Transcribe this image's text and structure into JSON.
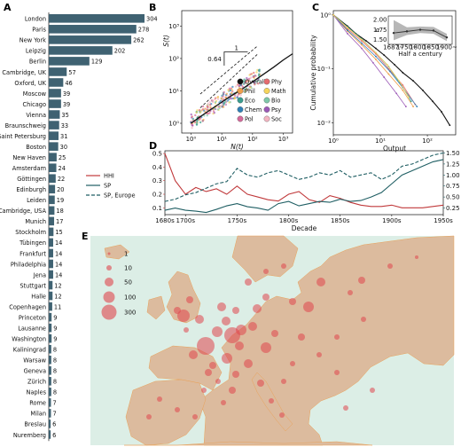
{
  "panels": {
    "a": "A",
    "b": "B",
    "c": "C",
    "d": "D",
    "e": "E"
  },
  "colors": {
    "bar": "#3f6272",
    "hhi": "#c0393b",
    "sp": "#1f5e63",
    "map_land": "#dcbb9e",
    "map_sea": "#dceee6",
    "bubble": "#e0464c"
  },
  "chart_data": [
    {
      "type": "bar",
      "orientation": "horizontal",
      "categories": [
        "London",
        "Paris",
        "New York",
        "Leipzig",
        "Berlin",
        "Cambridge, UK",
        "Oxford, UK",
        "Moscow",
        "Chicago",
        "Vienna",
        "Braunschweig",
        "Saint Petersburg",
        "Boston",
        "New Haven",
        "Amsterdam",
        "Göttingen",
        "Edinburgh",
        "Leiden",
        "Cambridge, USA",
        "Munich",
        "Stockholm",
        "Tübingen",
        "Frankfurt",
        "Philadelphia",
        "Jena",
        "Stuttgart",
        "Halle",
        "Copenhagen",
        "Princeton",
        "Lausanne",
        "Washington",
        "Kaliningrad",
        "Warsaw",
        "Geneva",
        "Zürich",
        "Naples",
        "Rome",
        "Milan",
        "Breslau",
        "Nuremberg"
      ],
      "values": [
        304,
        278,
        262,
        202,
        129,
        57,
        46,
        39,
        39,
        35,
        33,
        31,
        30,
        25,
        24,
        22,
        20,
        19,
        18,
        17,
        15,
        14,
        14,
        14,
        14,
        12,
        12,
        11,
        9,
        9,
        9,
        8,
        8,
        8,
        8,
        8,
        7,
        7,
        6,
        6
      ],
      "xlim": [
        0,
        304
      ]
    },
    {
      "type": "scatter",
      "xlabel": "N(t)",
      "ylabel": "S(t)",
      "xscale": "log",
      "yscale": "log",
      "xlim": [
        0.5,
        2000
      ],
      "ylim": [
        0.5,
        3000
      ],
      "xticks": [
        "10⁰",
        "10¹",
        "10²",
        "10³"
      ],
      "yticks": [
        "10⁰",
        "10¹",
        "10²",
        "10³"
      ],
      "slope_labels": {
        "run": "1",
        "rise": "0.64"
      },
      "legend": [
        {
          "name": "Overall",
          "color": "#111111"
        },
        {
          "name": "Phy",
          "color": "#e56b6f"
        },
        {
          "name": "Phil",
          "color": "#f0a04b"
        },
        {
          "name": "Math",
          "color": "#f6d55c"
        },
        {
          "name": "Eco",
          "color": "#3a9d8f"
        },
        {
          "name": "Bio",
          "color": "#7fc8a9"
        },
        {
          "name": "Chem",
          "color": "#2f7fb5"
        },
        {
          "name": "Psy",
          "color": "#9b59b6"
        },
        {
          "name": "Pol",
          "color": "#d46a9b"
        },
        {
          "name": "Soc",
          "color": "#f4b6c2"
        }
      ],
      "overall": {
        "x": [
          1,
          2,
          5,
          10,
          20,
          50,
          100,
          200,
          500,
          1000,
          2000
        ],
        "y": [
          1,
          1.6,
          2.9,
          4.5,
          7,
          12,
          19,
          30,
          55,
          90,
          140
        ]
      }
    },
    {
      "type": "line",
      "xlabel": "Output",
      "ylabel": "Cumulative probability",
      "xscale": "log",
      "yscale": "log",
      "xlim": [
        1,
        400
      ],
      "ylim": [
        0.006,
        1.2
      ],
      "xticks": [
        "10⁰",
        "10¹",
        "10²"
      ],
      "yticks": [
        "10⁻²",
        "10⁻¹",
        "10⁰"
      ],
      "series": [
        {
          "color": "#111111",
          "x": [
            1,
            2,
            3,
            5,
            8,
            12,
            20,
            30,
            50,
            80,
            130,
            200,
            300
          ],
          "y": [
            1,
            0.62,
            0.45,
            0.33,
            0.24,
            0.18,
            0.12,
            0.085,
            0.06,
            0.04,
            0.025,
            0.016,
            0.009
          ]
        },
        {
          "color": "#e56b6f",
          "x": [
            1,
            2,
            4,
            8,
            15,
            30,
            55
          ],
          "y": [
            1,
            0.55,
            0.33,
            0.19,
            0.1,
            0.05,
            0.022
          ]
        },
        {
          "color": "#f0a04b",
          "x": [
            1,
            2,
            4,
            8,
            15,
            30,
            50
          ],
          "y": [
            1,
            0.5,
            0.28,
            0.15,
            0.08,
            0.04,
            0.02
          ]
        },
        {
          "color": "#3a9d8f",
          "x": [
            1,
            2,
            4,
            8,
            15,
            28,
            45
          ],
          "y": [
            1,
            0.6,
            0.36,
            0.2,
            0.11,
            0.05,
            0.025
          ]
        },
        {
          "color": "#2f7fb5",
          "x": [
            1,
            2,
            4,
            8,
            16,
            30,
            60
          ],
          "y": [
            1,
            0.52,
            0.3,
            0.17,
            0.09,
            0.045,
            0.02
          ]
        },
        {
          "color": "#9b59b6",
          "x": [
            1,
            2,
            4,
            7,
            12,
            22,
            35
          ],
          "y": [
            1,
            0.45,
            0.24,
            0.13,
            0.07,
            0.035,
            0.02
          ]
        },
        {
          "color": "#f6d55c",
          "x": [
            1,
            2,
            4,
            8,
            14,
            25,
            40
          ],
          "y": [
            1,
            0.58,
            0.35,
            0.2,
            0.12,
            0.06,
            0.03
          ]
        }
      ],
      "inset": {
        "ylabel": "α",
        "xlabel": "Half a century",
        "xticks": [
          "1687~",
          "1750~",
          "1800~",
          "1850~",
          "1900~"
        ],
        "yticks": [
          "1.50",
          "1.75",
          "2.00"
        ],
        "ylim": [
          1.4,
          2.1
        ],
        "values": [
          1.68,
          1.72,
          1.76,
          1.74,
          1.57
        ],
        "lower": [
          1.5,
          1.63,
          1.68,
          1.66,
          1.48
        ],
        "upper": [
          2.0,
          1.82,
          1.84,
          1.83,
          1.66
        ]
      }
    },
    {
      "type": "line",
      "xlabel": "Decade",
      "x": [
        "1680s",
        "1690s",
        "1700s",
        "1710s",
        "1720s",
        "1730s",
        "1740s",
        "1750s",
        "1760s",
        "1770s",
        "1780s",
        "1790s",
        "1800s",
        "1810s",
        "1820s",
        "1830s",
        "1840s",
        "1850s",
        "1860s",
        "1870s",
        "1880s",
        "1890s",
        "1900s",
        "1910s",
        "1920s",
        "1930s",
        "1940s",
        "1950s"
      ],
      "xticks": [
        "1680s",
        "1700s",
        "1750s",
        "1800s",
        "1850s",
        "1900s",
        "1950s"
      ],
      "yticks_left": [
        "0.1",
        "0.2",
        "0.3",
        "0.4",
        "0.5"
      ],
      "yticks_right": [
        "0.25",
        "0.50",
        "0.75",
        "1.00",
        "1.25",
        "1.50"
      ],
      "ylim_left": [
        0.05,
        0.52
      ],
      "ylim_right": [
        0.1,
        1.55
      ],
      "series": [
        {
          "name": "HHI",
          "axis": "left",
          "color": "#c0393b",
          "dash": "none",
          "values": [
            0.5,
            0.3,
            0.2,
            0.25,
            0.22,
            0.24,
            0.2,
            0.26,
            0.2,
            0.18,
            0.16,
            0.15,
            0.2,
            0.22,
            0.16,
            0.14,
            0.19,
            0.17,
            0.14,
            0.12,
            0.11,
            0.11,
            0.12,
            0.1,
            0.1,
            0.1,
            0.11,
            0.12
          ]
        },
        {
          "name": "SP",
          "axis": "right",
          "color": "#1f5e63",
          "dash": "none",
          "values": [
            0.2,
            0.25,
            0.2,
            0.18,
            0.15,
            0.22,
            0.3,
            0.35,
            0.28,
            0.25,
            0.2,
            0.35,
            0.4,
            0.3,
            0.35,
            0.4,
            0.38,
            0.45,
            0.4,
            0.42,
            0.5,
            0.6,
            0.8,
            1.0,
            1.1,
            1.2,
            1.3,
            1.35
          ]
        },
        {
          "name": "SP, Europe",
          "axis": "right",
          "color": "#1f5e63",
          "dash": "4,2",
          "values": [
            0.4,
            0.45,
            0.55,
            0.6,
            0.7,
            0.8,
            0.85,
            1.15,
            1.0,
            0.95,
            1.05,
            1.1,
            1.0,
            0.9,
            0.95,
            1.05,
            1.0,
            1.1,
            0.95,
            1.0,
            1.05,
            0.9,
            1.0,
            1.2,
            1.25,
            1.35,
            1.45,
            1.5
          ]
        }
      ]
    },
    {
      "type": "bubble-map",
      "legend": [
        "1",
        "10",
        "50",
        "100",
        "300"
      ]
    }
  ]
}
